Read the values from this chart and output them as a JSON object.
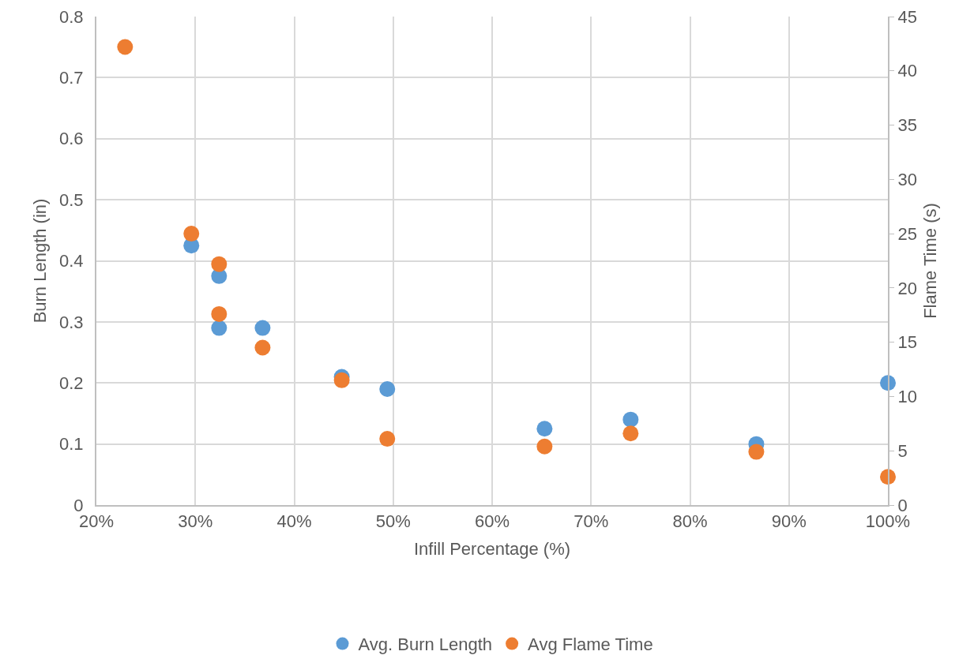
{
  "chart_data": {
    "type": "scatter",
    "xlabel": "Infill Percentage (%)",
    "ylabel": "Burn Length (in)",
    "y2label": "Flame Time (s)",
    "x": [
      22.9,
      29.6,
      32.4,
      32.4,
      36.8,
      44.8,
      49.4,
      65.3,
      74.0,
      86.7,
      100
    ],
    "series": [
      {
        "name": "Avg. Burn Length",
        "color": "#5b9bd5",
        "values": [
          null,
          0.425,
          0.375,
          0.29,
          0.29,
          0.21,
          0.19,
          0.125,
          0.14,
          0.1,
          0.2
        ]
      },
      {
        "name": "Avg Flame Time",
        "color": "#ed7d31",
        "axis": "y2",
        "values": [
          42.2,
          25.0,
          22.2,
          17.6,
          14.5,
          11.5,
          6.1,
          5.4,
          6.6,
          4.9,
          2.6
        ]
      }
    ],
    "xlim": [
      20,
      100
    ],
    "xticks": [
      {
        "value": 20,
        "label": "20%"
      },
      {
        "value": 30,
        "label": "30%"
      },
      {
        "value": 40,
        "label": "40%"
      },
      {
        "value": 50,
        "label": "50%"
      },
      {
        "value": 60,
        "label": "60%"
      },
      {
        "value": 70,
        "label": "70%"
      },
      {
        "value": 80,
        "label": "80%"
      },
      {
        "value": 90,
        "label": "90%"
      },
      {
        "value": 100,
        "label": "100%"
      }
    ],
    "ylim": [
      0,
      0.8
    ],
    "yticks": [
      0,
      0.1,
      0.2,
      0.3,
      0.4,
      0.5,
      0.6,
      0.7,
      0.8
    ],
    "y2lim": [
      0,
      45
    ],
    "y2ticks": [
      0,
      5,
      10,
      15,
      20,
      25,
      30,
      35,
      40,
      45
    ],
    "grid": true,
    "legend": "bottom",
    "marker": "circle"
  }
}
